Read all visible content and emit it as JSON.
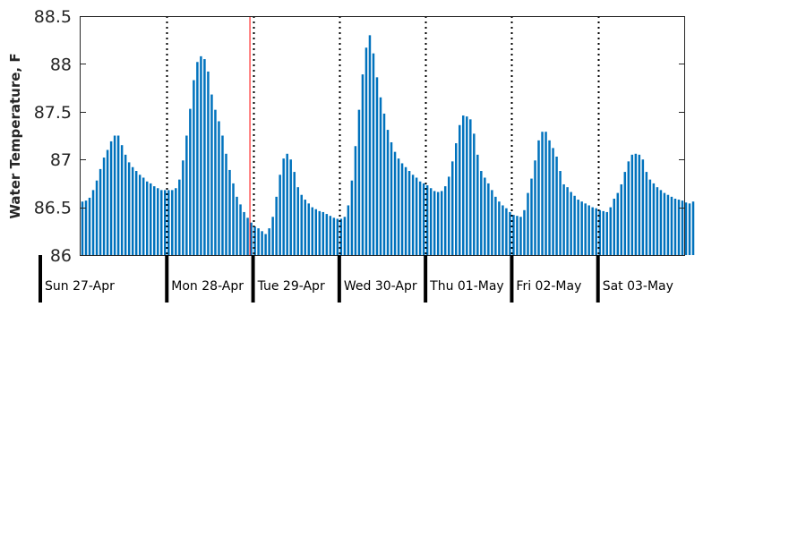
{
  "chart_data": {
    "type": "bar",
    "title": "",
    "xlabel": "",
    "ylabel": "Water Temperature, F",
    "ylim": [
      86,
      88.5
    ],
    "yticks": [
      "86",
      "86.5",
      "87",
      "87.5",
      "88",
      "88.5"
    ],
    "grid": false,
    "bar_color": "#0072BD",
    "x_start": "2025-04-27 00:00",
    "x_end": "2025-05-04 00:00",
    "interval_hours": 1,
    "now_marker": "2025-04-28 23:00",
    "now_marker_color": "#ff0000",
    "days": [
      {
        "label": "Sun 27-Apr",
        "date": "2025-04-27"
      },
      {
        "label": "Mon 28-Apr",
        "date": "2025-04-28"
      },
      {
        "label": "Tue 29-Apr",
        "date": "2025-04-29"
      },
      {
        "label": "Wed 30-Apr",
        "date": "2025-04-30"
      },
      {
        "label": "Thu 01-May",
        "date": "2025-05-01"
      },
      {
        "label": "Fri 02-May",
        "date": "2025-05-02"
      },
      {
        "label": "Sat 03-May",
        "date": "2025-05-03"
      }
    ],
    "values": [
      86.56,
      86.57,
      86.6,
      86.68,
      86.78,
      86.9,
      87.02,
      87.1,
      87.19,
      87.25,
      87.25,
      87.15,
      87.05,
      86.97,
      86.92,
      86.88,
      86.84,
      86.81,
      86.77,
      86.75,
      86.72,
      86.7,
      86.68,
      86.68,
      86.68,
      86.68,
      86.7,
      86.79,
      86.99,
      87.25,
      87.53,
      87.83,
      88.02,
      88.08,
      88.05,
      87.92,
      87.68,
      87.52,
      87.4,
      87.25,
      87.06,
      86.89,
      86.75,
      86.61,
      86.53,
      86.45,
      86.39,
      86.34,
      86.3,
      86.28,
      86.25,
      86.22,
      86.28,
      86.4,
      86.61,
      86.84,
      87.01,
      87.06,
      87.0,
      86.87,
      86.71,
      86.63,
      86.58,
      86.54,
      86.5,
      86.48,
      86.46,
      86.45,
      86.43,
      86.41,
      86.39,
      86.38,
      86.38,
      86.4,
      86.52,
      86.78,
      87.14,
      87.52,
      87.89,
      88.17,
      88.3,
      88.11,
      87.86,
      87.65,
      87.48,
      87.31,
      87.18,
      87.08,
      87.01,
      86.96,
      86.92,
      86.88,
      86.84,
      86.81,
      86.77,
      86.75,
      86.73,
      86.7,
      86.67,
      86.66,
      86.67,
      86.72,
      86.82,
      86.98,
      87.17,
      87.36,
      87.46,
      87.45,
      87.42,
      87.27,
      87.05,
      86.88,
      86.81,
      86.75,
      86.68,
      86.61,
      86.56,
      86.52,
      86.49,
      86.45,
      86.42,
      86.41,
      86.4,
      86.47,
      86.65,
      86.8,
      86.99,
      87.2,
      87.29,
      87.29,
      87.2,
      87.12,
      87.03,
      86.88,
      86.74,
      86.71,
      86.66,
      86.62,
      86.58,
      86.56,
      86.54,
      86.52,
      86.5,
      86.49,
      86.47,
      86.46,
      86.45,
      86.5,
      86.59,
      86.65,
      86.74,
      86.87,
      86.98,
      87.05,
      87.06,
      87.05,
      87.0,
      86.87,
      86.79,
      86.75,
      86.71,
      86.68,
      86.65,
      86.63,
      86.61,
      86.59,
      86.58,
      86.57,
      86.55,
      86.54,
      86.56
    ]
  }
}
